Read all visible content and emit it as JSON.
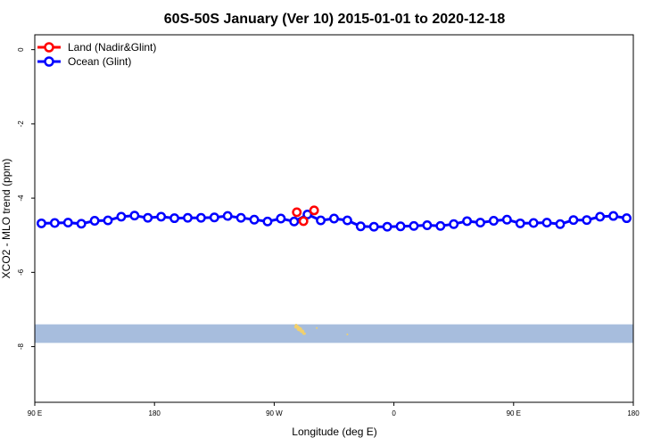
{
  "chart_data": {
    "type": "line",
    "title": "60S-50S January (Ver 10)   2015-01-01 to 2020-12-18",
    "xlabel": "Longitude (deg E)",
    "ylabel": "XCO2 - MLO trend (ppm)",
    "xlim": [
      90,
      540
    ],
    "ylim": [
      -9.5,
      0.4
    ],
    "x_tick_values": [
      90,
      180,
      270,
      360,
      450,
      540
    ],
    "x_tick_labels": [
      "90 E",
      "180",
      "90 W",
      "0",
      "90 E",
      "180"
    ],
    "y_tick_values": [
      0,
      -2,
      -4,
      -6,
      -8
    ],
    "y_tick_labels": [
      "0",
      "-2",
      "-4",
      "-6",
      "-8"
    ],
    "legend_position": "top-left",
    "grid": false,
    "series": [
      {
        "name": "Land (Nadir&Glint)",
        "color": "#ff0000",
        "x": [
          287,
          292,
          300
        ],
        "y": [
          -4.38,
          -4.62,
          -4.33
        ]
      },
      {
        "name": "Ocean (Glint)",
        "color": "#0000ff",
        "x": [
          95,
          105,
          115,
          125,
          135,
          145,
          155,
          165,
          175,
          185,
          195,
          205,
          215,
          225,
          235,
          245,
          255,
          265,
          275,
          285,
          295,
          305,
          315,
          325,
          335,
          345,
          355,
          365,
          375,
          385,
          395,
          405,
          415,
          425,
          435,
          445,
          455,
          465,
          475,
          485,
          495,
          505,
          515,
          525,
          535
        ],
        "y": [
          -4.68,
          -4.67,
          -4.66,
          -4.69,
          -4.61,
          -4.6,
          -4.5,
          -4.47,
          -4.53,
          -4.5,
          -4.54,
          -4.53,
          -4.53,
          -4.52,
          -4.48,
          -4.53,
          -4.58,
          -4.63,
          -4.55,
          -4.63,
          -4.44,
          -4.6,
          -4.55,
          -4.6,
          -4.76,
          -4.77,
          -4.77,
          -4.76,
          -4.75,
          -4.73,
          -4.75,
          -4.7,
          -4.62,
          -4.66,
          -4.61,
          -4.58,
          -4.68,
          -4.67,
          -4.66,
          -4.7,
          -4.59,
          -4.59,
          -4.5,
          -4.48,
          -4.54
        ]
      }
    ],
    "map_strip": {
      "band_color": "#a7bddd",
      "land_color": "#f2d06b"
    }
  }
}
